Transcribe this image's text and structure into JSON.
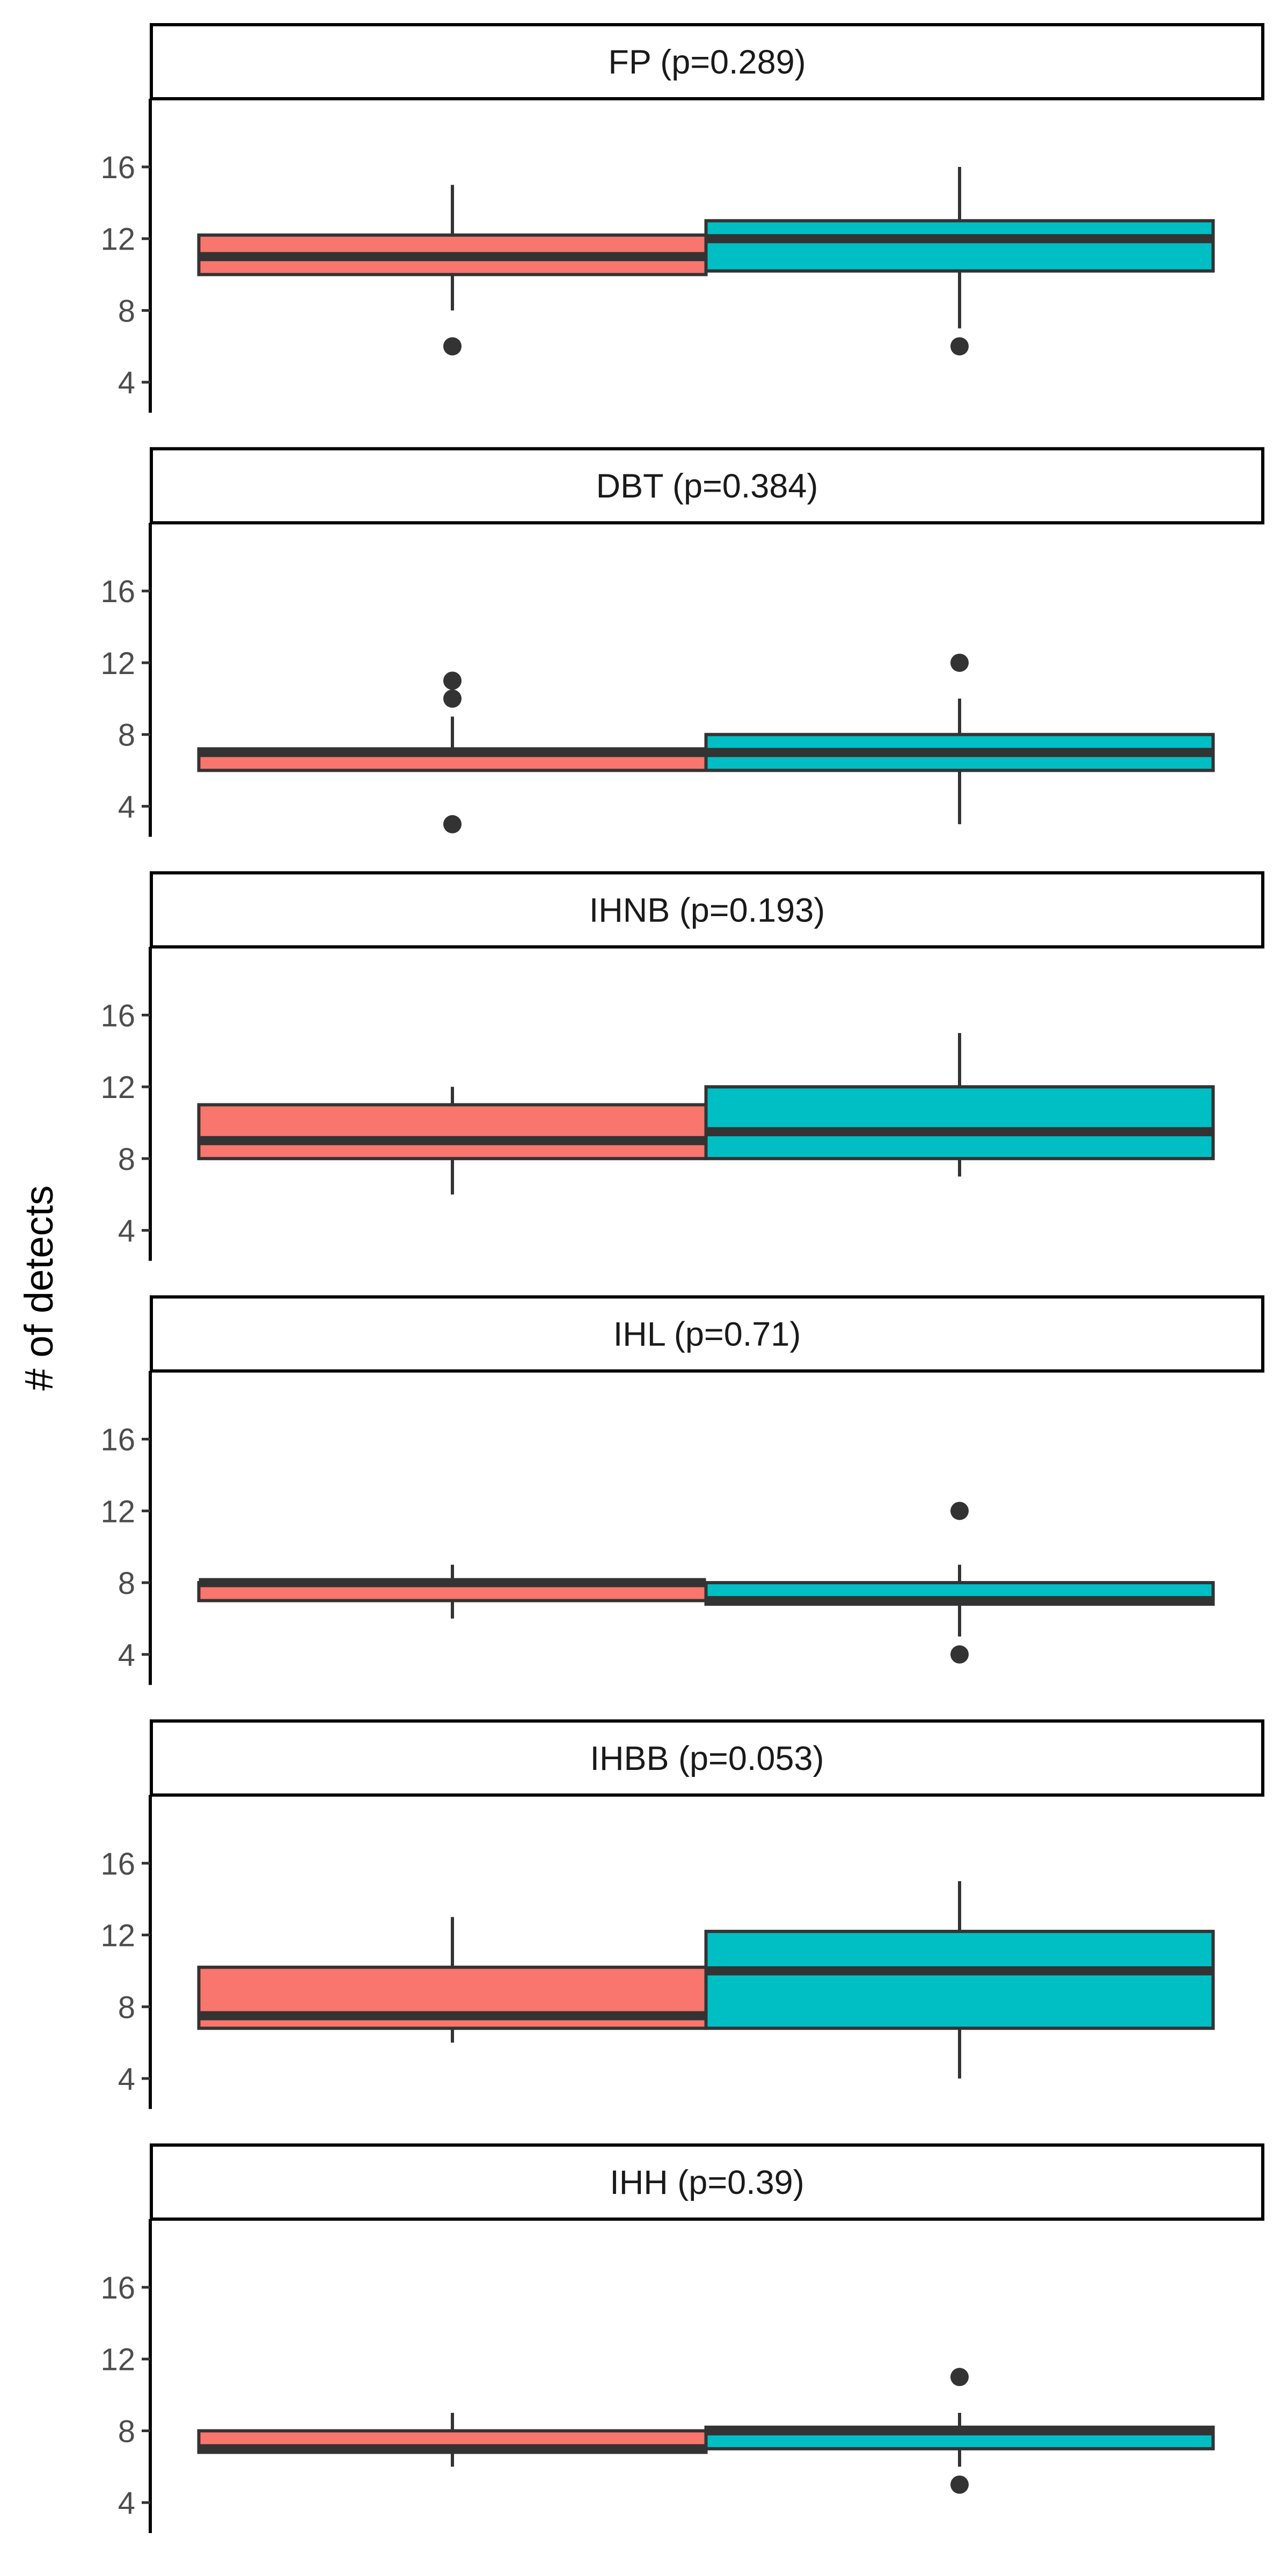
{
  "chart_data": {
    "type": "boxplot",
    "ylabel": "# of detects",
    "ylim": [
      2.3,
      19.8
    ],
    "yticks": [
      4,
      8,
      12,
      16
    ],
    "groups": [
      {
        "color": "#F8766D"
      },
      {
        "color": "#00BFC4"
      }
    ],
    "colors": {
      "box_outline": "#333333",
      "axis": "#000000",
      "tick_text": "#4d4d4d",
      "strip_fill": "#ffffff",
      "strip_border": "#000000"
    },
    "panels": [
      {
        "title": "FP (p=0.289)",
        "boxes": [
          {
            "whisker_low": 8,
            "q1": 10,
            "median": 11,
            "q3": 12.2,
            "whisker_high": 15,
            "outliers": [
              6
            ]
          },
          {
            "whisker_low": 7,
            "q1": 10.2,
            "median": 12,
            "q3": 13,
            "whisker_high": 16,
            "outliers": [
              6
            ]
          }
        ]
      },
      {
        "title": "DBT (p=0.384)",
        "boxes": [
          {
            "whisker_low": 6,
            "q1": 6,
            "median": 7,
            "q3": 7.2,
            "whisker_high": 9,
            "outliers": [
              3,
              10,
              11
            ]
          },
          {
            "whisker_low": 3,
            "q1": 6,
            "median": 7,
            "q3": 8,
            "whisker_high": 10,
            "outliers": [
              12
            ]
          }
        ]
      },
      {
        "title": "IHNB (p=0.193)",
        "boxes": [
          {
            "whisker_low": 6,
            "q1": 8,
            "median": 9,
            "q3": 11,
            "whisker_high": 12,
            "outliers": []
          },
          {
            "whisker_low": 7,
            "q1": 8,
            "median": 9.5,
            "q3": 12,
            "whisker_high": 15,
            "outliers": []
          }
        ]
      },
      {
        "title": "IHL (p=0.71)",
        "boxes": [
          {
            "whisker_low": 6,
            "q1": 7,
            "median": 8,
            "q3": 8,
            "whisker_high": 9,
            "outliers": []
          },
          {
            "whisker_low": 5,
            "q1": 6.8,
            "median": 7,
            "q3": 8,
            "whisker_high": 9,
            "outliers": [
              4,
              12
            ]
          }
        ]
      },
      {
        "title": "IHBB (p=0.053)",
        "boxes": [
          {
            "whisker_low": 6,
            "q1": 6.8,
            "median": 7.5,
            "q3": 10.2,
            "whisker_high": 13,
            "outliers": []
          },
          {
            "whisker_low": 4,
            "q1": 6.8,
            "median": 10,
            "q3": 12.2,
            "whisker_high": 15,
            "outliers": []
          }
        ]
      },
      {
        "title": "IHH (p=0.39)",
        "boxes": [
          {
            "whisker_low": 6,
            "q1": 6.8,
            "median": 7,
            "q3": 8,
            "whisker_high": 9,
            "outliers": []
          },
          {
            "whisker_low": 6,
            "q1": 7,
            "median": 8,
            "q3": 8.2,
            "whisker_high": 9,
            "outliers": [
              5,
              11
            ]
          }
        ]
      }
    ]
  }
}
